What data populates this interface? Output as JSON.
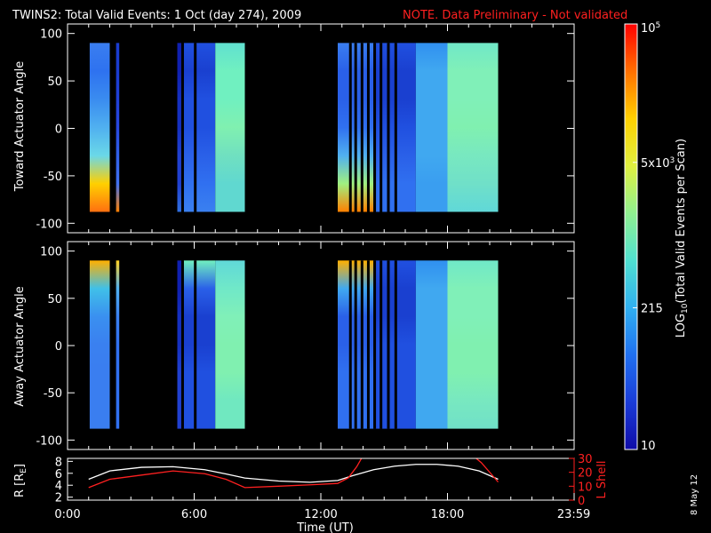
{
  "title": "TWINS2: Total Valid Events:  1 Oct (day 274), 2009",
  "note": "NOTE. Data Preliminary - Not validated",
  "footer_date": "8 May 12",
  "colors": {
    "background": "#000000",
    "axes": "#ffffff",
    "note": "#ff2020",
    "lshell": "#ff2020",
    "radius": "#ffffff"
  },
  "chart_data": [
    {
      "type": "heatmap",
      "panel": "top",
      "ylabel": "Toward Actuator Angle",
      "ylim": [
        -110,
        110
      ],
      "yticks": [
        100,
        50,
        0,
        -50,
        -100
      ],
      "y_data_range": [
        -88,
        90
      ],
      "xlim": [
        0,
        24
      ],
      "scan_blocks": [
        {
          "t0": 1.05,
          "t1": 2.0,
          "colors": [
            "#3a7ef0",
            "#2e72f0",
            "#3a8cf0",
            "#50b0f0",
            "#6ad8e8",
            "#ffd000",
            "#ff7010"
          ]
        },
        {
          "t0": 2.3,
          "t1": 2.45,
          "colors": [
            "#1a3cd0",
            "#1a3cd0",
            "#2040d8",
            "#2848e0",
            "#3060e8",
            "#4070f0",
            "#ff8000"
          ]
        },
        {
          "t0": 5.2,
          "t1": 5.4,
          "colors": [
            "#1020b0",
            "#1020b0",
            "#1530c0",
            "#1530c0",
            "#2040d0",
            "#2040d0",
            "#3070e0"
          ]
        },
        {
          "t0": 5.5,
          "t1": 7.0,
          "colors": [
            "#2050e0",
            "#1a40d0",
            "#2050e0",
            "#2050e0",
            "#2a60e8",
            "#3070f0",
            "#3a80f0"
          ]
        },
        {
          "t0": 7.0,
          "t1": 8.4,
          "colors": [
            "#60e0d0",
            "#70f0c0",
            "#70f0c0",
            "#80f0b0",
            "#70e0c0",
            "#60d8d0",
            "#60d8d0"
          ]
        },
        {
          "t0": 12.8,
          "t1": 14.5,
          "colors": [
            "#3a7ef0",
            "#2a60e8",
            "#2a60e8",
            "#3070f0",
            "#50b0f0",
            "#a0f080",
            "#ff8000"
          ]
        },
        {
          "t0": 14.5,
          "t1": 16.5,
          "colors": [
            "#2050e0",
            "#1a40d0",
            "#1a40d0",
            "#2050e0",
            "#2a60e8",
            "#3070f0",
            "#3070f0"
          ]
        },
        {
          "t0": 16.5,
          "t1": 18.0,
          "colors": [
            "#3090f0",
            "#40a8f0",
            "#40a8f0",
            "#40a8f0",
            "#40a8f0",
            "#3a9ef0",
            "#3a9ef0"
          ]
        },
        {
          "t0": 18.0,
          "t1": 20.4,
          "colors": [
            "#70e8c8",
            "#80f0b8",
            "#80f0b8",
            "#80f0b0",
            "#78e8c0",
            "#70e0c8",
            "#60d8d8"
          ]
        }
      ],
      "gap_lines": [
        2.15,
        5.45,
        6.05,
        13.4,
        13.65,
        13.95,
        14.25,
        14.55,
        14.85,
        15.2,
        15.55
      ]
    },
    {
      "type": "heatmap",
      "panel": "middle",
      "ylabel": "Away Actuator Angle",
      "ylim": [
        -110,
        110
      ],
      "yticks": [
        100,
        50,
        0,
        -50,
        -100
      ],
      "y_data_range": [
        -88,
        90
      ],
      "xlim": [
        0,
        24
      ],
      "scan_blocks": [
        {
          "t0": 1.05,
          "t1": 2.0,
          "colors": [
            "#ffb000",
            "#40c0e8",
            "#3a90f0",
            "#3a80f0",
            "#3a7ef0",
            "#3a7ef0",
            "#3a7ef0"
          ]
        },
        {
          "t0": 2.3,
          "t1": 2.45,
          "colors": [
            "#ffd020",
            "#50b0f0",
            "#3a80f0",
            "#3070f0",
            "#3070f0",
            "#3070f0",
            "#3070f0"
          ]
        },
        {
          "t0": 5.2,
          "t1": 5.4,
          "colors": [
            "#1020b0",
            "#1020b0",
            "#1530c0",
            "#1530c0",
            "#2040d0",
            "#2040d0",
            "#2040d0"
          ]
        },
        {
          "t0": 5.5,
          "t1": 7.0,
          "colors": [
            "#70f0c0",
            "#2a60e8",
            "#1a40d0",
            "#1a40d0",
            "#2050e0",
            "#2050e0",
            "#2050e0"
          ]
        },
        {
          "t0": 7.0,
          "t1": 8.4,
          "colors": [
            "#60d8d8",
            "#70e8c8",
            "#80f0b8",
            "#80f0b0",
            "#80f0b0",
            "#70e8c0",
            "#70e8c0"
          ]
        },
        {
          "t0": 12.8,
          "t1": 14.5,
          "colors": [
            "#ffb000",
            "#40a8f0",
            "#2a60e8",
            "#2a60e8",
            "#3070f0",
            "#3070f0",
            "#3070f0"
          ]
        },
        {
          "t0": 14.5,
          "t1": 16.5,
          "colors": [
            "#2050e0",
            "#1a40d0",
            "#1a40d0",
            "#2050e0",
            "#2050e0",
            "#2050e0",
            "#2050e0"
          ]
        },
        {
          "t0": 16.5,
          "t1": 18.0,
          "colors": [
            "#3090f0",
            "#40a8f0",
            "#40a8f0",
            "#40a8f0",
            "#40a8f0",
            "#40a8f0",
            "#40a8f0"
          ]
        },
        {
          "t0": 18.0,
          "t1": 20.4,
          "colors": [
            "#70e8c8",
            "#80f0b8",
            "#80f0b8",
            "#80f0b0",
            "#80f0b0",
            "#78e8c0",
            "#70e0c8"
          ]
        }
      ],
      "gap_lines": [
        2.15,
        5.45,
        6.05,
        13.4,
        13.65,
        13.95,
        14.25,
        14.55,
        14.85,
        15.2,
        15.55
      ]
    },
    {
      "type": "line",
      "panel": "bottom",
      "ylabel_left": "R [R",
      "ylabel_left_sub": "E",
      "ylabel_left_end": "]",
      "ylabel_right": "L Shell",
      "ylim_left": [
        1.5,
        8.5
      ],
      "yticks_left": [
        8,
        6,
        4,
        2
      ],
      "ylim_right": [
        0,
        30
      ],
      "yticks_right": [
        30,
        20,
        10,
        0
      ],
      "xlim": [
        0,
        24
      ],
      "xticks": [
        0,
        6,
        12,
        18,
        23.983
      ],
      "xtick_labels": [
        "0:00",
        "6:00",
        "12:00",
        "18:00",
        "23:59"
      ],
      "xlabel": "Time (UT)",
      "series": [
        {
          "axis": "left",
          "color": "#ffffff",
          "points": [
            [
              1.0,
              5.0
            ],
            [
              2.0,
              6.4
            ],
            [
              3.5,
              7.0
            ],
            [
              5.0,
              7.1
            ],
            [
              6.5,
              6.6
            ],
            [
              7.5,
              5.9
            ],
            [
              8.4,
              5.2
            ],
            [
              10.0,
              4.7
            ],
            [
              11.5,
              4.5
            ],
            [
              12.8,
              4.8
            ],
            [
              13.5,
              5.6
            ],
            [
              14.5,
              6.6
            ],
            [
              15.5,
              7.2
            ],
            [
              16.5,
              7.5
            ],
            [
              17.5,
              7.5
            ],
            [
              18.5,
              7.2
            ],
            [
              19.5,
              6.4
            ],
            [
              20.4,
              5.0
            ]
          ]
        },
        {
          "axis": "right",
          "color": "#ff2020",
          "points": [
            [
              1.0,
              9
            ],
            [
              2.0,
              15
            ],
            [
              3.5,
              18
            ],
            [
              5.0,
              21
            ],
            [
              6.5,
              19
            ],
            [
              7.5,
              15
            ],
            [
              8.4,
              9
            ],
            [
              10.0,
              10
            ],
            [
              11.5,
              11
            ],
            [
              12.8,
              12
            ],
            [
              13.3,
              16
            ],
            [
              13.7,
              24
            ],
            [
              14.0,
              32
            ]
          ],
          "points_b": [
            [
              19.2,
              32
            ],
            [
              19.6,
              27
            ],
            [
              20.4,
              13
            ]
          ]
        }
      ]
    },
    {
      "type": "colorbar",
      "label": "LOG",
      "label_sub": "10",
      "label_end": "(Total Valid Events per Scan)",
      "scale": "log",
      "range": [
        10,
        100000
      ],
      "tick_values": [
        100000,
        5000,
        215,
        10
      ],
      "tick_labels": [
        "10^5",
        "5x10^3",
        "215",
        "10"
      ],
      "tick_label_top_base": "10",
      "tick_label_top_exp": "5",
      "tick_label_mid_base": "5x10",
      "tick_label_mid_exp": "3",
      "stops": [
        "#ff0000",
        "#ff7000",
        "#ffd000",
        "#e0f040",
        "#90f090",
        "#50e0d0",
        "#30b0f0",
        "#2070f0",
        "#1a3cd8",
        "#100ca8"
      ]
    }
  ]
}
